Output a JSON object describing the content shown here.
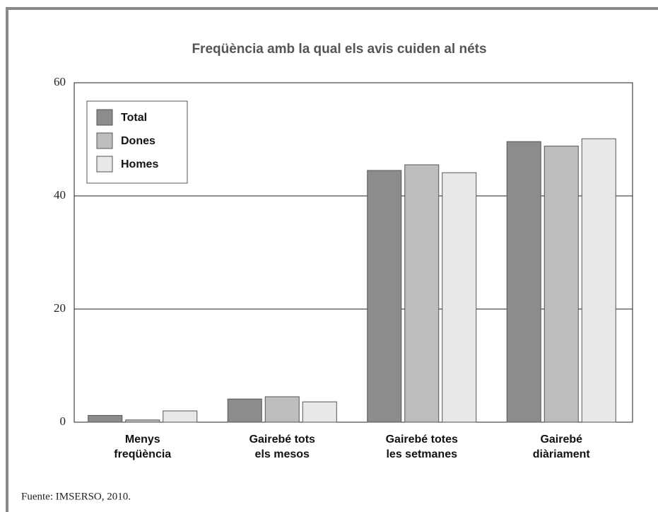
{
  "chart_data": {
    "type": "bar",
    "title": "Freqüència amb la qual els avis cuiden al néts",
    "categories": [
      [
        "Menys",
        "freqüència"
      ],
      [
        "Gairebé tots",
        "els mesos"
      ],
      [
        "Gairebé totes",
        "les setmanes"
      ],
      [
        "Gairebé",
        "diàriament"
      ]
    ],
    "series": [
      {
        "name": "Total",
        "color": "#8c8c8c",
        "values": [
          1.2,
          4.1,
          44.5,
          49.6
        ]
      },
      {
        "name": "Dones",
        "color": "#bdbdbd",
        "values": [
          0.4,
          4.5,
          45.5,
          48.8
        ]
      },
      {
        "name": "Homes",
        "color": "#e8e8e8",
        "values": [
          2.0,
          3.6,
          44.1,
          50.1
        ]
      }
    ],
    "ylim": [
      0,
      60
    ],
    "yticks": [
      0,
      20,
      40,
      60
    ],
    "grid": true,
    "legend": "upper left",
    "source": "Fuente: IMSERSO, 2010."
  }
}
